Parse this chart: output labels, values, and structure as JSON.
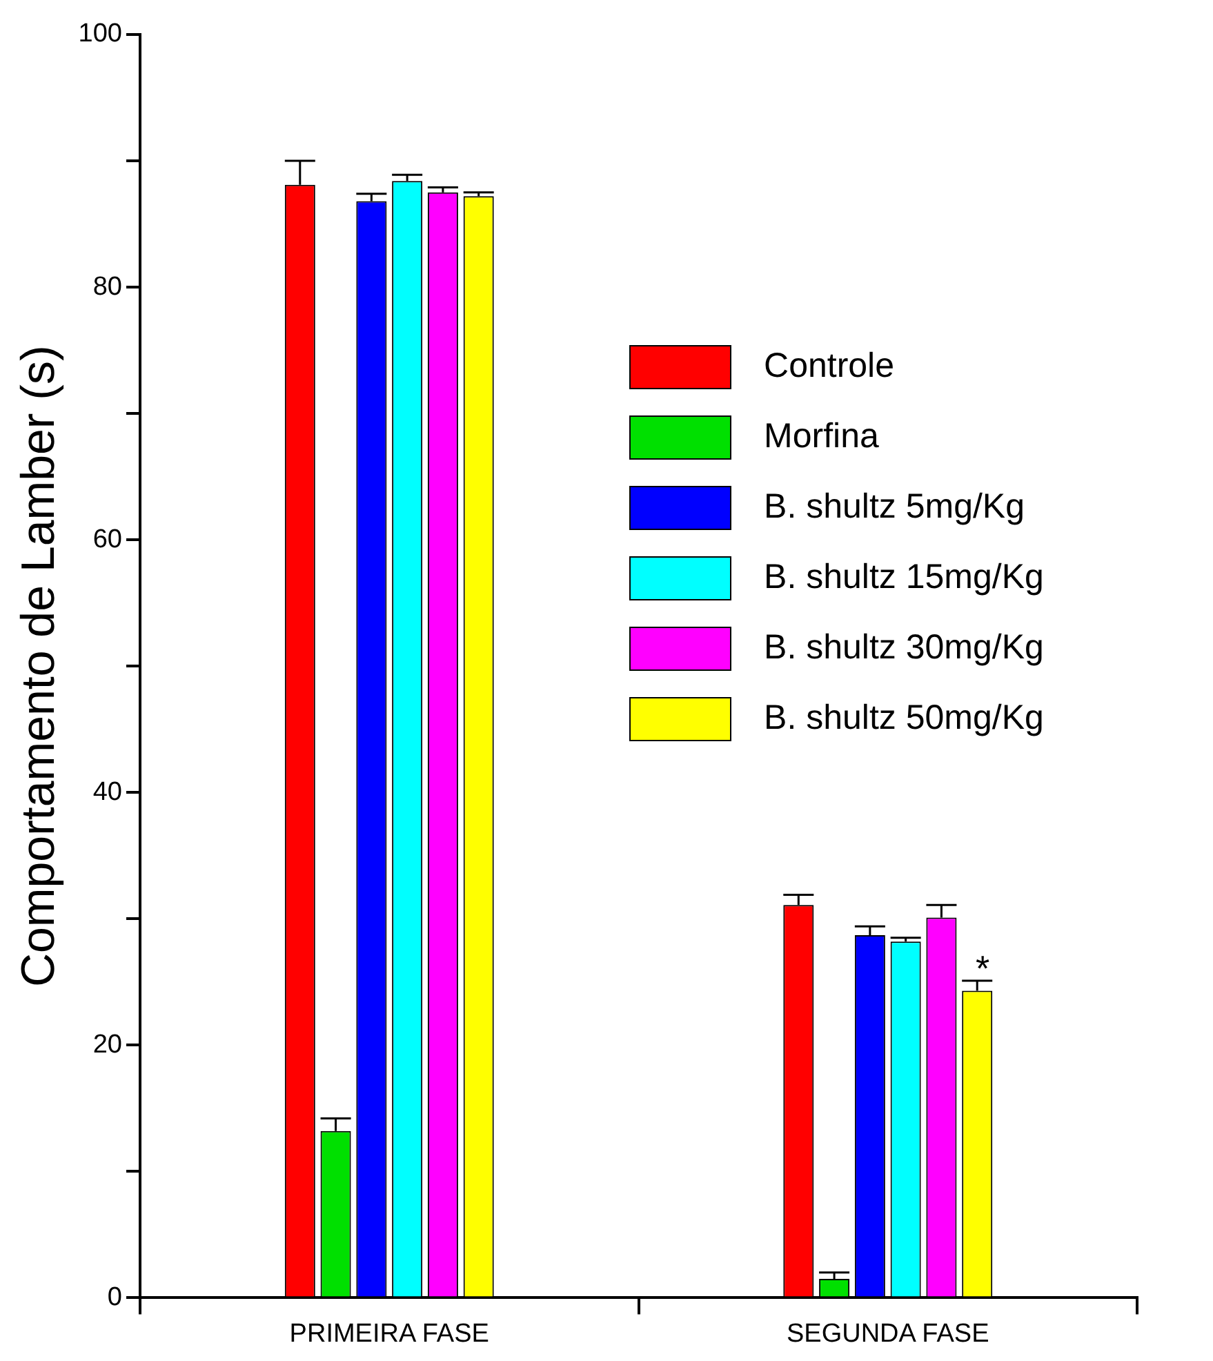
{
  "chart_data": {
    "type": "bar",
    "ylabel": "Comportamento de Lamber (s)",
    "categories": [
      "PRIMEIRA FASE",
      "SEGUNDA FASE"
    ],
    "ylim": [
      0,
      100
    ],
    "yticks": [
      0,
      {
        "value": 10,
        "label": null
      },
      20,
      {
        "value": 30,
        "label": null
      },
      40,
      {
        "value": 50,
        "label": null
      },
      60,
      {
        "value": 70,
        "label": null
      },
      80,
      {
        "value": 90,
        "label": null
      },
      100
    ],
    "grid": false,
    "legend": "right",
    "annotations": [
      {
        "text": "*",
        "x": "SEGUNDA FASE",
        "y": 25.1
      }
    ],
    "series": [
      {
        "name": "Controle",
        "color": "#ff0000",
        "values": [
          88.1,
          31.1
        ],
        "errors": [
          [
            88.1,
            90.0
          ],
          [
            31.1,
            31.9
          ]
        ]
      },
      {
        "name": "Morfina",
        "color": "#00e000",
        "values": [
          13.2,
          1.5
        ],
        "errors": [
          [
            13.2,
            14.2
          ],
          [
            1.5,
            2.0
          ]
        ]
      },
      {
        "name": "B. shultz 5mg/Kg",
        "color": "#0000ff",
        "values": [
          86.8,
          28.7
        ],
        "errors": [
          [
            86.8,
            87.4
          ],
          [
            28.7,
            29.4
          ]
        ]
      },
      {
        "name": "B. shultz 15mg/Kg",
        "color": "#00ffff",
        "values": [
          88.4,
          28.2
        ],
        "errors": [
          [
            88.4,
            88.9
          ],
          [
            28.2,
            28.5
          ]
        ]
      },
      {
        "name": "B. shultz 30mg/Kg",
        "color": "#ff00ff",
        "values": [
          87.5,
          30.1
        ],
        "errors": [
          [
            87.5,
            87.9
          ],
          [
            30.1,
            31.1
          ]
        ]
      },
      {
        "name": "B. shultz 50mg/Kg",
        "color": "#ffff00",
        "values": [
          87.2,
          24.3
        ],
        "errors": [
          [
            87.2,
            87.5
          ],
          [
            24.3,
            25.1
          ]
        ]
      }
    ]
  }
}
